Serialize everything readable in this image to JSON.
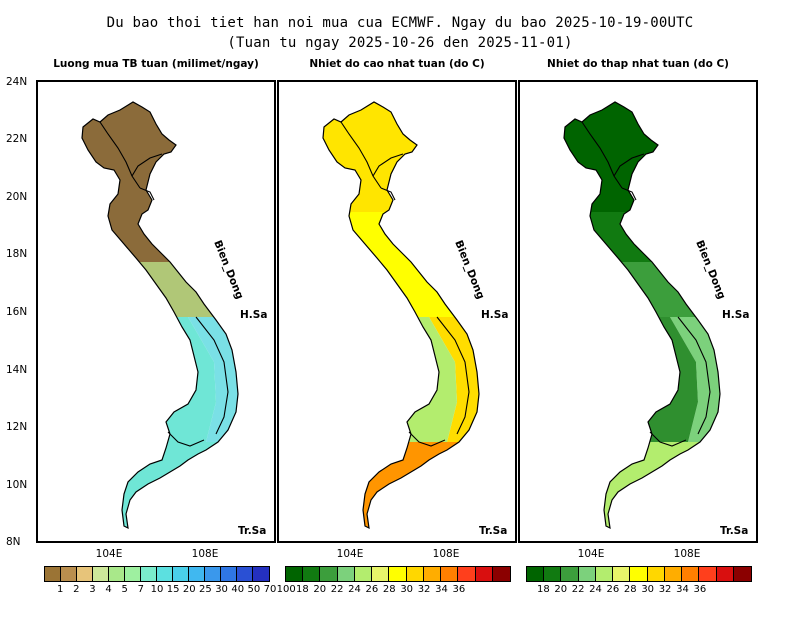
{
  "title_line1": "Du bao thoi tiet han noi mua cua ECMWF. Ngay du bao 2025-10-19-00UTC",
  "title_line2": "(Tuan tu ngay 2025-10-26 den 2025-11-01)",
  "axes": {
    "lat_labels": [
      "24N",
      "22N",
      "20N",
      "18N",
      "16N",
      "14N",
      "12N",
      "10N",
      "8N"
    ],
    "lon_labels": [
      "104E",
      "108E"
    ]
  },
  "map_labels": {
    "sea": "Bien_Dong",
    "hoang_sa": "H.Sa",
    "truong_sa": "Tr.Sa"
  },
  "panels": [
    {
      "title": "Luong mua TB tuan (milimet/ngay)",
      "colorbar": {
        "colors": [
          "#9b7435",
          "#b98e4e",
          "#e7c47a",
          "#cde89a",
          "#a9e88a",
          "#9ef0a0",
          "#7aeccc",
          "#5ce0e0",
          "#4ad0ea",
          "#40b8f0",
          "#3a98ec",
          "#2f76e4",
          "#2a50d4",
          "#2430c0"
        ],
        "ticks": [
          "1",
          "2",
          "3",
          "4",
          "5",
          "7",
          "10",
          "15",
          "20",
          "25",
          "30",
          "40",
          "50",
          "70",
          "100"
        ]
      },
      "regions": {
        "north": "#8b6b3a",
        "north_central": "#8b6b3a",
        "central_transition": "#b0c777",
        "central_coast": "#7ae0e6",
        "central_highlands": "#6fe6d6",
        "south": "#6fe6d6"
      }
    },
    {
      "title": "Nhiet do cao nhat tuan (do C)",
      "colorbar": {
        "colors": [
          "#006400",
          "#117a11",
          "#3c9e3c",
          "#7cd17c",
          "#b3ed6e",
          "#e8f56a",
          "#ffff00",
          "#ffd700",
          "#ffad00",
          "#ff7f00",
          "#ff3f1c",
          "#d90f0f",
          "#8b0000"
        ],
        "ticks": [
          "18",
          "20",
          "22",
          "24",
          "26",
          "28",
          "30",
          "32",
          "34",
          "36"
        ]
      },
      "regions": {
        "north": "#ffe500",
        "north_central": "#ffff00",
        "central_transition": "#ffff00",
        "central_coast": "#ffdd00",
        "central_highlands": "#b3ed6e",
        "south": "#ff9500"
      }
    },
    {
      "title": "Nhiet do thap nhat tuan (do C)",
      "colorbar": {
        "colors": [
          "#006400",
          "#117a11",
          "#3c9e3c",
          "#7cd17c",
          "#b3ed6e",
          "#e8f56a",
          "#ffff00",
          "#ffd700",
          "#ffad00",
          "#ff7f00",
          "#ff3f1c",
          "#d90f0f",
          "#8b0000"
        ],
        "ticks": [
          "18",
          "20",
          "22",
          "24",
          "26",
          "28",
          "30",
          "32",
          "34",
          "36"
        ]
      },
      "regions": {
        "north": "#006400",
        "north_central": "#117a11",
        "central_transition": "#3c9e3c",
        "central_coast": "#7cd17c",
        "central_highlands": "#2f8f2f",
        "south": "#b3ed6e"
      }
    }
  ]
}
